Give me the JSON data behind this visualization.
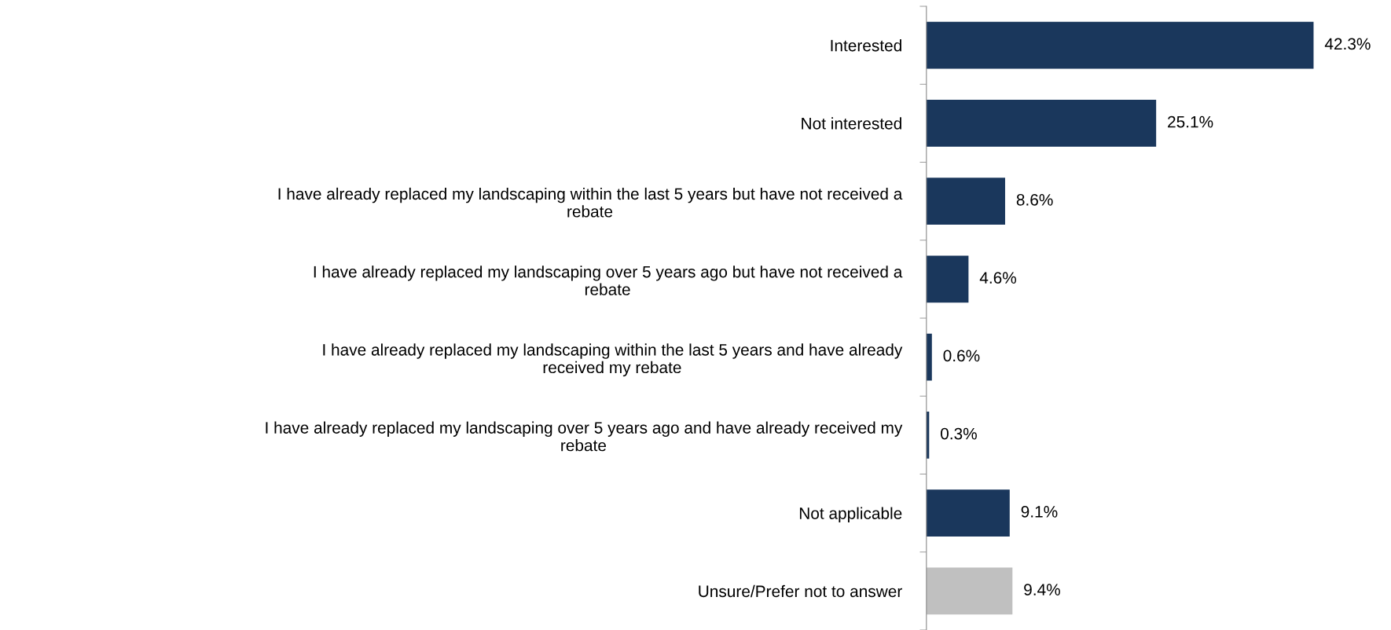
{
  "chart_data": {
    "type": "bar",
    "orientation": "horizontal",
    "categories": [
      "Interested",
      "Not interested",
      "I have already replaced my landscaping within the last 5 years but have not received a\nrebate",
      "I have already replaced my landscaping over 5 years ago but have not received a\nrebate",
      "I have already replaced my landscaping within the last 5 years and have already\nreceived my rebate",
      "I have already replaced my landscaping over 5 years ago and have already received my\nrebate",
      "Not applicable",
      "Unsure/Prefer not to answer"
    ],
    "values": [
      42.3,
      25.1,
      8.6,
      4.6,
      0.6,
      0.3,
      9.1,
      9.4
    ],
    "colors": [
      "#1a375c",
      "#1a375c",
      "#1a375c",
      "#1a375c",
      "#1a375c",
      "#1a375c",
      "#1a375c",
      "#c0c0c0"
    ],
    "value_labels": [
      "42.3%",
      "25.1%",
      "8.6%",
      "4.6%",
      "0.6%",
      "0.3%",
      "9.1%",
      "9.4%"
    ],
    "grid": false,
    "legend": false
  }
}
